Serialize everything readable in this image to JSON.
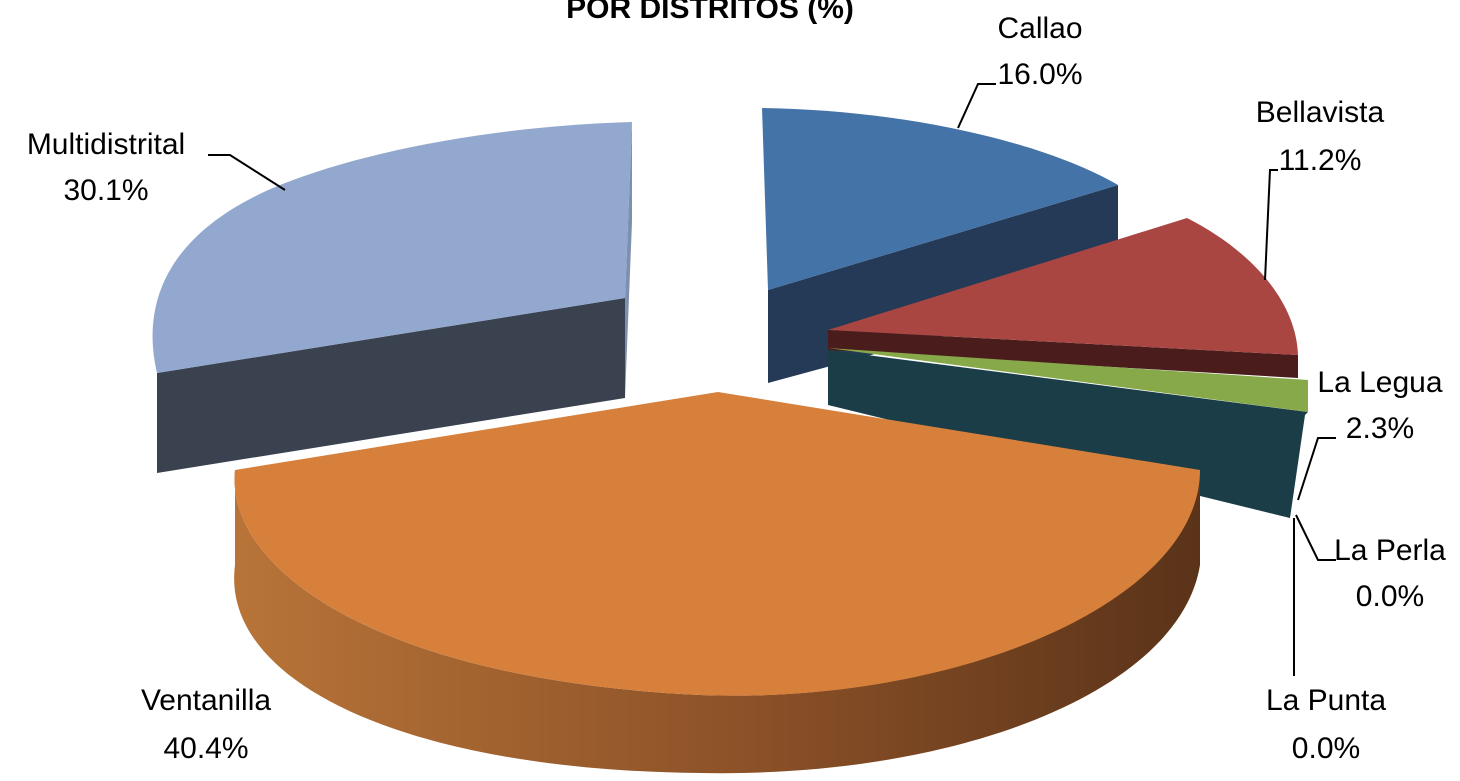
{
  "chart_data": {
    "type": "pie",
    "style": "3d-exploded",
    "title": "POR DISTRITOS (%)",
    "slices": [
      {
        "label": "Callao",
        "value": 16.0,
        "value_label": "16.0%",
        "color": "#4473A8",
        "side_color": "#253A57"
      },
      {
        "label": "Bellavista",
        "value": 11.2,
        "value_label": "11.2%",
        "color": "#A94642",
        "side_color": "#4A1C1B"
      },
      {
        "label": "La Legua",
        "value": 2.3,
        "value_label": "2.3%",
        "color": "#87A94A",
        "side_color": "#1B3D48"
      },
      {
        "label": "La Perla",
        "value": 0.0,
        "value_label": "0.0%",
        "color": "#6E548C",
        "side_color": "#1B3D48"
      },
      {
        "label": "La Punta",
        "value": 0.0,
        "value_label": "0.0%",
        "color": "#3C9AB2",
        "side_color": "#1B3D48"
      },
      {
        "label": "Ventanilla",
        "value": 40.4,
        "value_label": "40.4%",
        "color": "#D7803C",
        "side_color": "#5A3319"
      },
      {
        "label": "Multidistrital",
        "value": 30.1,
        "value_label": "30.1%",
        "color": "#93A8CF",
        "side_color": "#3A4250"
      }
    ],
    "legend": "none",
    "data_labels": "outside-with-leader-lines"
  }
}
